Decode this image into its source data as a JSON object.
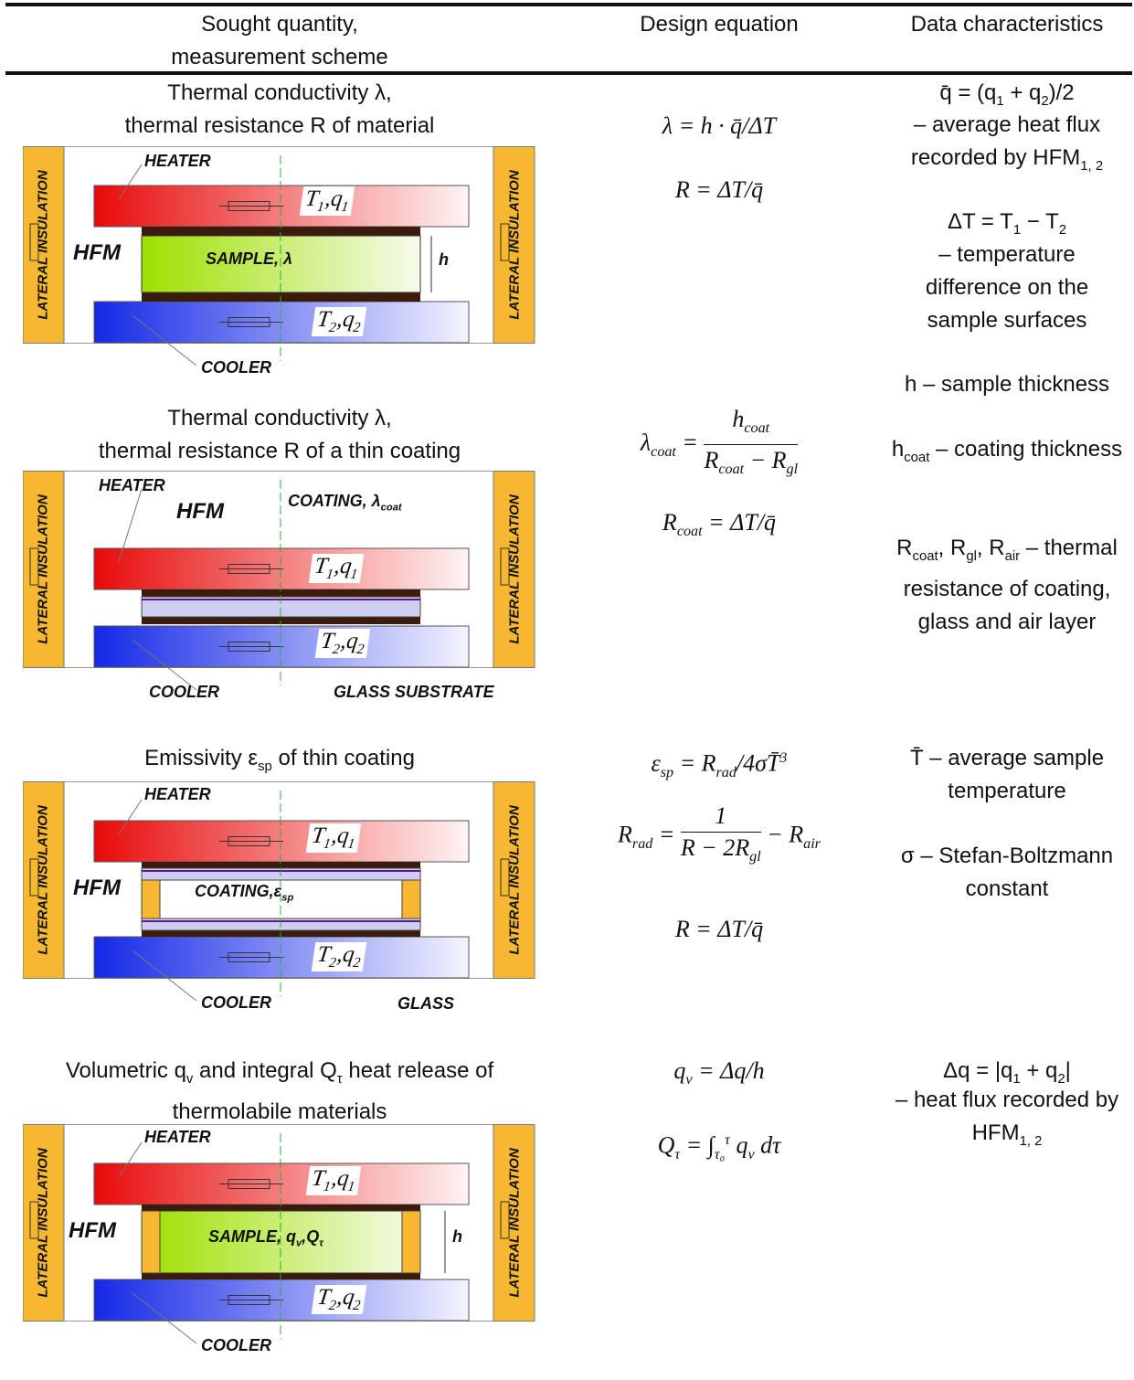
{
  "header": {
    "columns": [
      [
        "Sought quantity,",
        "measurement scheme"
      ],
      [
        "Design equation"
      ],
      [
        "Data characteristics"
      ]
    ]
  },
  "rows": [
    {
      "title": [
        "Thermal conductivity λ,",
        "thermal resistance R of material"
      ],
      "diagram": {
        "heater": "HEATER",
        "cooler": "COOLER",
        "hfm": "HFM",
        "insulation": "LATERAL INSULATION",
        "sample": "SAMPLE, λ",
        "top": [
          "T",
          {
            "sub": "1"
          },
          ",q",
          {
            "sub": "1"
          }
        ],
        "bottom": [
          "T",
          {
            "sub": "2"
          },
          ",q",
          {
            "sub": "2"
          }
        ],
        "thickness": "h"
      },
      "equations": [
        [
          "λ = h · q̄/ΔT"
        ],
        [
          "R = ΔT/q̄"
        ]
      ],
      "characteristics": [
        [
          "q̄ = (q",
          {
            "sub": "1"
          },
          " + q",
          {
            "sub": "2"
          },
          ")/2"
        ],
        [
          "– average heat flux recorded by HFM",
          {
            "sub": "1, 2"
          }
        ],
        [
          "ΔT = T",
          {
            "sub": "1"
          },
          " − T",
          {
            "sub": "2"
          }
        ],
        [
          "– temperature difference on the sample surfaces"
        ],
        [
          "h – sample thickness"
        ]
      ]
    },
    {
      "title": [
        "Thermal conductivity λ,",
        "thermal resistance R of a thin coating"
      ],
      "diagram": {
        "heater": "HEATER",
        "cooler": "COOLER",
        "hfm": "HFM",
        "insulation": "LATERAL INSULATION",
        "coating": [
          "COATING, λ",
          {
            "sub": "coat"
          }
        ],
        "glass": "GLASS SUBSTRATE",
        "top": [
          "T",
          {
            "sub": "1"
          },
          ",q",
          {
            "sub": "1"
          }
        ],
        "bottom": [
          "T",
          {
            "sub": "2"
          },
          ",q",
          {
            "sub": "2"
          }
        ]
      },
      "equations": [
        [
          "λ",
          {
            "sub": "coat"
          },
          " = ",
          {
            "num": [
              "h",
              {
                "sub": "coat"
              }
            ],
            "den": [
              "R",
              {
                "sub": "coat"
              },
              " − R",
              {
                "sub": "gl"
              }
            ]
          }
        ],
        [
          "R",
          {
            "sub": "coat"
          },
          " = ΔT/q̄"
        ]
      ],
      "characteristics": [
        [
          "h",
          {
            "sub": "coat"
          },
          " – coating thickness"
        ],
        [
          "R",
          {
            "sub": "coat"
          },
          ", R",
          {
            "sub": "gl"
          },
          ", R",
          {
            "sub": "air"
          },
          " – thermal resistance of coating, glass and air layer"
        ]
      ]
    },
    {
      "title": [
        [
          "Emissivity ε",
          {
            "sub": "sp"
          },
          " of thin coating"
        ]
      ],
      "diagram": {
        "heater": "HEATER",
        "cooler": "COOLER",
        "hfm": "HFM",
        "insulation": "LATERAL INSULATION",
        "coating": [
          "COATING,ε",
          {
            "sub": "sp"
          }
        ],
        "glass": "GLASS",
        "top": [
          "T",
          {
            "sub": "1"
          },
          ",q",
          {
            "sub": "1"
          }
        ],
        "bottom": [
          "T",
          {
            "sub": "2"
          },
          ",q",
          {
            "sub": "2"
          }
        ]
      },
      "equations": [
        [
          "ε",
          {
            "sub": "sp"
          },
          " = R",
          {
            "sub": "rad"
          },
          "/4σT̄",
          {
            "sup": "3"
          }
        ],
        [
          "R",
          {
            "sub": "rad"
          },
          " = ",
          {
            "num": [
              "1"
            ],
            "den": [
              "R − 2R",
              {
                "sub": "gl"
              }
            ]
          },
          " − R",
          {
            "sub": "air"
          }
        ],
        [
          "R = ΔT/q̄"
        ]
      ],
      "characteristics": [
        [
          "T̄ – average sample temperature"
        ],
        [
          "σ – Stefan-Boltzmann constant"
        ]
      ]
    },
    {
      "title": [
        [
          "Volumetric q",
          {
            "sub": "v"
          },
          " and integral Q",
          {
            "sub": "τ"
          },
          " heat release of"
        ],
        "thermolabile materials"
      ],
      "diagram": {
        "heater": "HEATER",
        "cooler": "COOLER",
        "hfm": "HFM",
        "insulation": "LATERAL INSULATION",
        "sample": [
          "SAMPLE, q",
          {
            "sub": "v"
          },
          ",Q",
          {
            "sub": "τ"
          }
        ],
        "top": [
          "T",
          {
            "sub": "1"
          },
          ",q",
          {
            "sub": "1"
          }
        ],
        "bottom": [
          "T",
          {
            "sub": "2"
          },
          ",q",
          {
            "sub": "2"
          }
        ],
        "thickness": "h"
      },
      "equations": [
        [
          "q",
          {
            "sub": "v"
          },
          " = Δq/h"
        ],
        [
          "Q",
          {
            "sub": "τ"
          },
          " = ∫",
          {
            "sub": "τ₀"
          },
          {
            "sup": "τ"
          },
          " q",
          {
            "sub": "v"
          },
          " dτ"
        ]
      ],
      "characteristics": [
        [
          "Δq = |q",
          {
            "sub": "1"
          },
          " + q",
          {
            "sub": "2"
          },
          "|"
        ],
        [
          "– heat flux recorded by HFM",
          {
            "sub": "1, 2"
          }
        ]
      ]
    }
  ]
}
